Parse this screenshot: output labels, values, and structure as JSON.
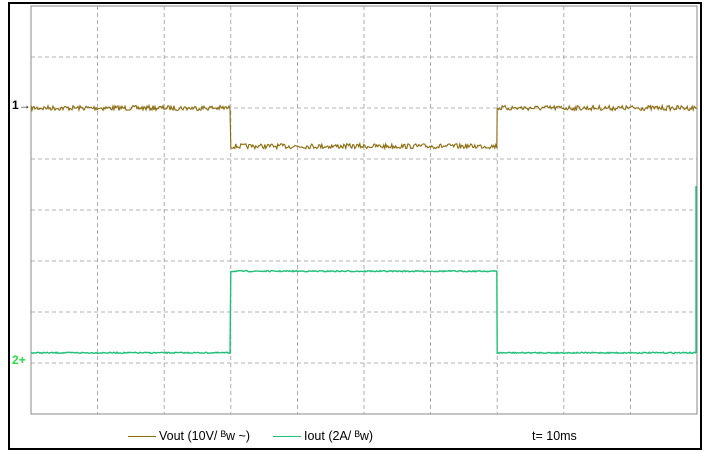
{
  "chart_data": {
    "type": "line",
    "title": "",
    "xlabel": "",
    "ylabel": "",
    "time_per_div": "t= 10ms",
    "grid": true,
    "grid_divisions": {
      "x": 10,
      "y": 8
    },
    "x": [
      0,
      3,
      3,
      7,
      7,
      10
    ],
    "series": [
      {
        "name": "Vout (10V/ ᴮw ~)",
        "channel_marker": "1",
        "color": "#8b6b0b",
        "values": [
          6.0,
          6.0,
          5.25,
          5.25,
          6.0,
          6.0
        ]
      },
      {
        "name": "Iout (2A/ ᴮw)",
        "channel_marker": "2",
        "color": "#1fbf78",
        "values": [
          1.2,
          1.2,
          2.8,
          2.8,
          1.2,
          1.2
        ]
      }
    ],
    "legend_placement": "bottom"
  }
}
